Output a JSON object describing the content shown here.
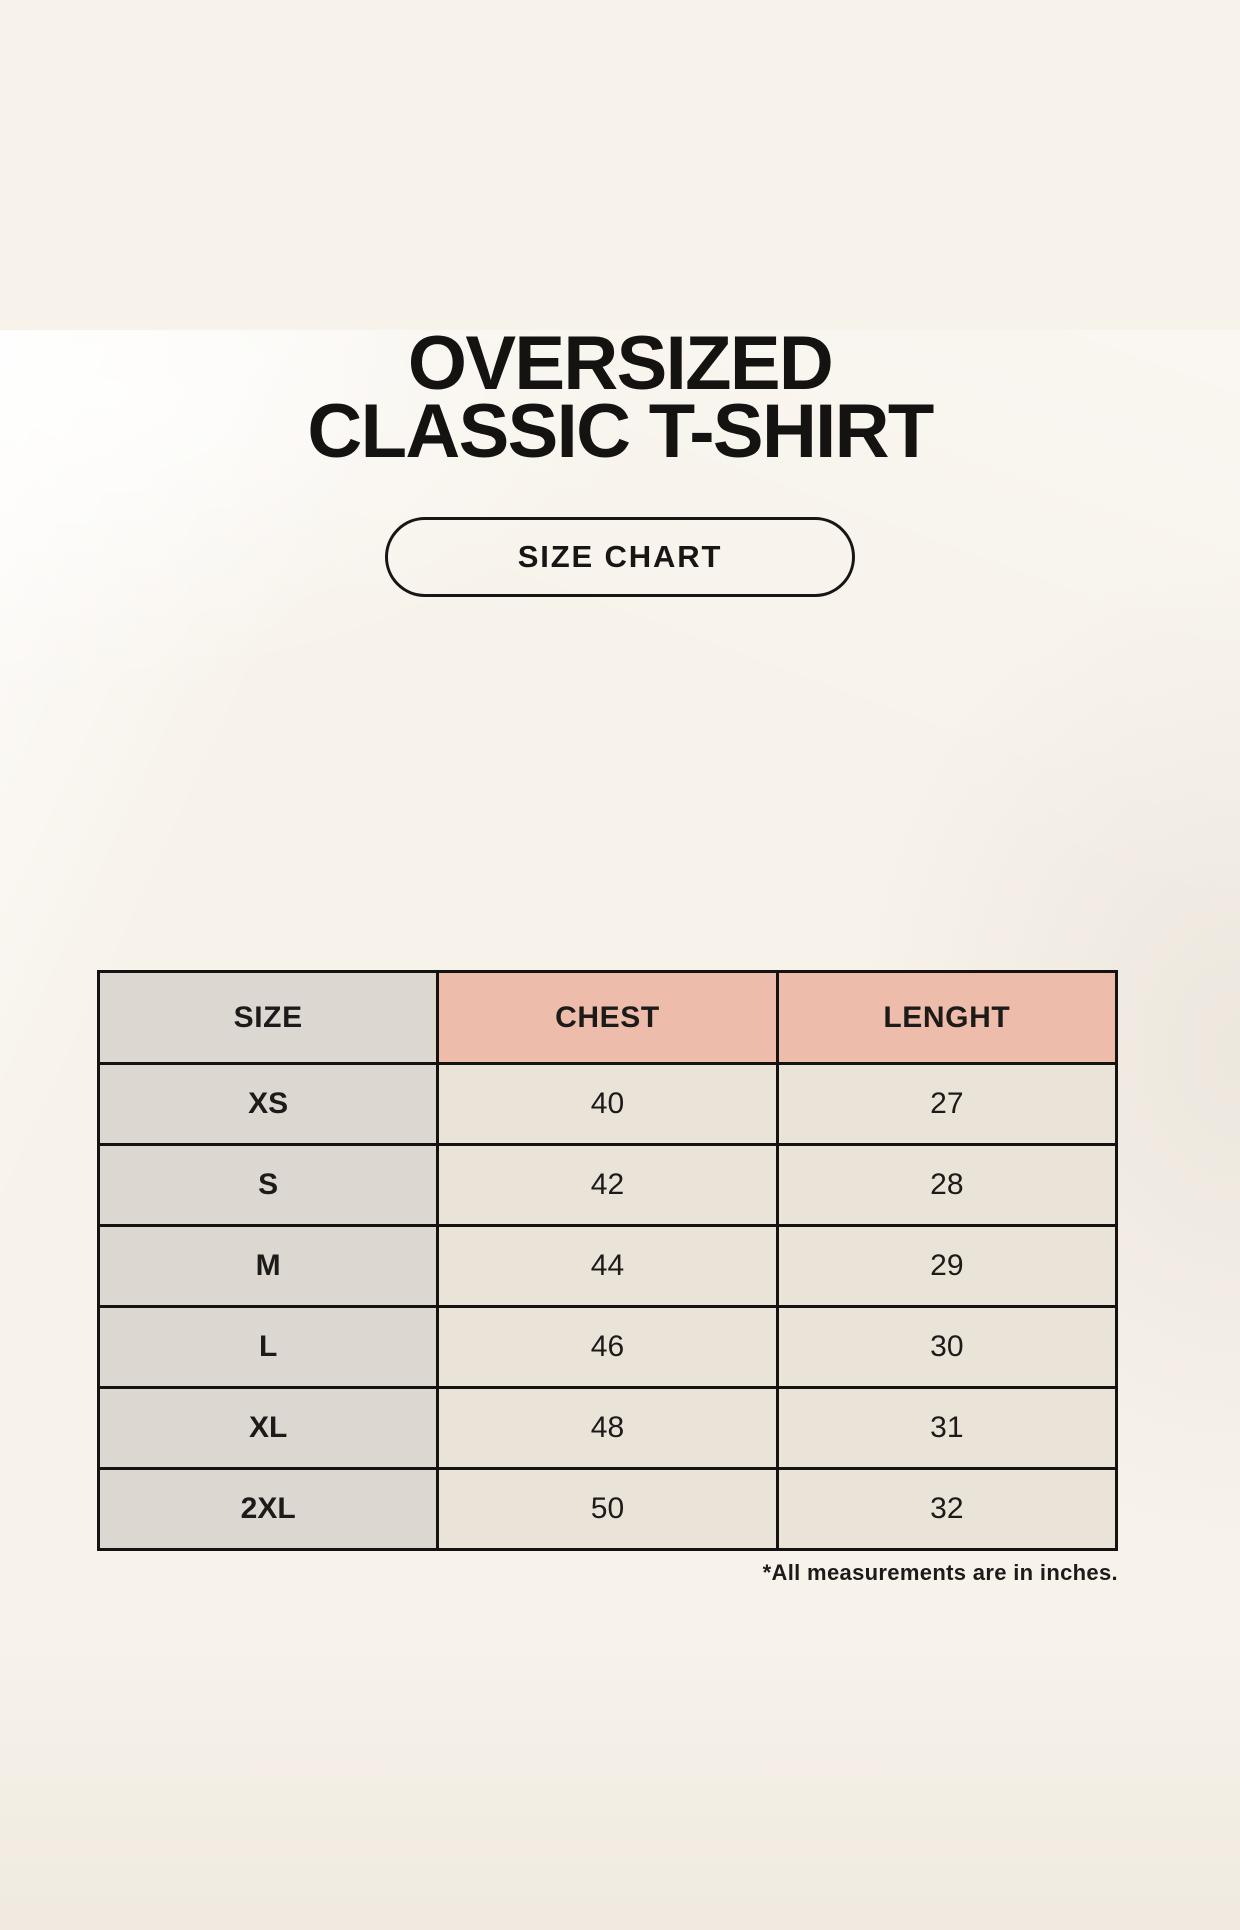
{
  "title": {
    "line1": "OVERSIZED",
    "line2": "CLASSIC T-SHIRT"
  },
  "badge": {
    "label": "SIZE CHART"
  },
  "table": {
    "headers": [
      "SIZE",
      "CHEST",
      "LENGHT"
    ],
    "rows": [
      [
        "XS",
        "40",
        "27"
      ],
      [
        "S",
        "42",
        "28"
      ],
      [
        "M",
        "44",
        "29"
      ],
      [
        "L",
        "46",
        "30"
      ],
      [
        "XL",
        "48",
        "31"
      ],
      [
        "2XL",
        "50",
        "32"
      ]
    ]
  },
  "footnote": "*All measurements are in inches.",
  "colors": {
    "background": "#f7f2ea",
    "header_accent": "#eebcab",
    "size_column": "#ddd7d2",
    "data_cell": "#eae3d8",
    "border": "#141311",
    "text": "#1c1b19"
  },
  "chart_data": {
    "type": "table",
    "title": "OVERSIZED CLASSIC T-SHIRT — SIZE CHART",
    "columns": [
      "SIZE",
      "CHEST",
      "LENGHT"
    ],
    "rows": [
      {
        "size": "XS",
        "chest": 40,
        "length": 27
      },
      {
        "size": "S",
        "chest": 42,
        "length": 28
      },
      {
        "size": "M",
        "chest": 44,
        "length": 29
      },
      {
        "size": "L",
        "chest": 46,
        "length": 30
      },
      {
        "size": "XL",
        "chest": 48,
        "length": 31
      },
      {
        "size": "2XL",
        "chest": 50,
        "length": 32
      }
    ],
    "units": "inches",
    "note": "*All measurements are in inches."
  }
}
